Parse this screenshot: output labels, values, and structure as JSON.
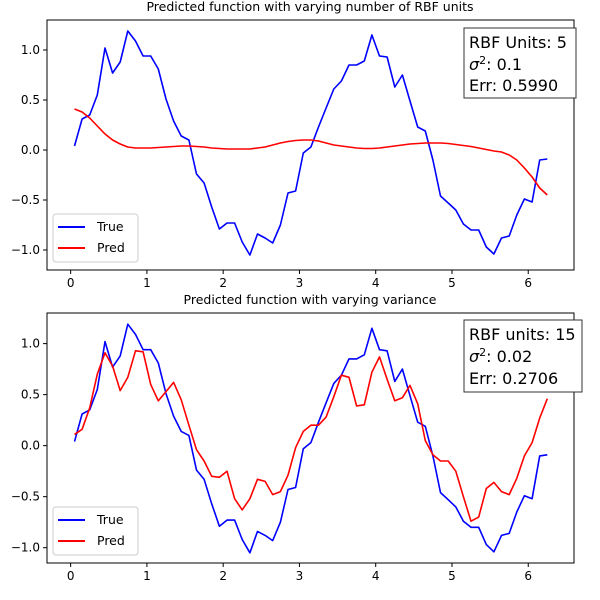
{
  "chart_data": [
    {
      "type": "line",
      "title": "Predicted function with varying number of RBF units",
      "xlim": [
        -0.31,
        6.6
      ],
      "ylim": [
        -1.2,
        1.3
      ],
      "xticks": [
        0,
        1,
        2,
        3,
        4,
        5,
        6
      ],
      "yticks": [
        -1.0,
        -0.5,
        0.0,
        0.5,
        1.0
      ],
      "ytick_labels": [
        "−1.0",
        "−0.5",
        "0.0",
        "0.5",
        "1.0"
      ],
      "grid": false,
      "legend_position": "lower-left",
      "info": {
        "line1": "RBF Units: 5",
        "line2_sup": "2",
        "line2_value": ": 0.1",
        "line3": "Err: 0.5990"
      },
      "series": [
        {
          "name": "True",
          "color": "#0000ff",
          "x": [
            0.05,
            0.15,
            0.25,
            0.35,
            0.45,
            0.55,
            0.65,
            0.75,
            0.85,
            0.95,
            1.05,
            1.15,
            1.25,
            1.35,
            1.45,
            1.55,
            1.65,
            1.75,
            1.85,
            1.95,
            2.05,
            2.15,
            2.25,
            2.35,
            2.45,
            2.55,
            2.65,
            2.75,
            2.85,
            2.95,
            3.05,
            3.15,
            3.25,
            3.35,
            3.45,
            3.55,
            3.65,
            3.75,
            3.85,
            3.95,
            4.05,
            4.15,
            4.25,
            4.35,
            4.45,
            4.55,
            4.65,
            4.75,
            4.85,
            4.95,
            5.05,
            5.15,
            5.25,
            5.35,
            5.45,
            5.55,
            5.65,
            5.75,
            5.85,
            5.95,
            6.05,
            6.15,
            6.25
          ],
          "y": [
            0.04,
            0.31,
            0.35,
            0.55,
            1.02,
            0.77,
            0.88,
            1.19,
            1.09,
            0.94,
            0.94,
            0.81,
            0.51,
            0.29,
            0.14,
            0.1,
            -0.24,
            -0.33,
            -0.57,
            -0.79,
            -0.73,
            -0.73,
            -0.92,
            -1.05,
            -0.84,
            -0.88,
            -0.93,
            -0.75,
            -0.43,
            -0.41,
            -0.03,
            0.03,
            0.23,
            0.42,
            0.61,
            0.69,
            0.85,
            0.85,
            0.89,
            1.15,
            0.94,
            0.93,
            0.63,
            0.75,
            0.49,
            0.23,
            0.19,
            -0.1,
            -0.46,
            -0.53,
            -0.6,
            -0.74,
            -0.8,
            -0.8,
            -0.97,
            -1.04,
            -0.88,
            -0.86,
            -0.65,
            -0.49,
            -0.52,
            -0.1,
            -0.09
          ]
        },
        {
          "name": "Pred",
          "color": "#ff0000",
          "x": [
            0.05,
            0.15,
            0.25,
            0.35,
            0.45,
            0.55,
            0.65,
            0.75,
            0.85,
            0.95,
            1.05,
            1.15,
            1.25,
            1.35,
            1.45,
            1.55,
            1.65,
            1.75,
            1.85,
            1.95,
            2.05,
            2.15,
            2.25,
            2.35,
            2.45,
            2.55,
            2.65,
            2.75,
            2.85,
            2.95,
            3.05,
            3.15,
            3.25,
            3.35,
            3.45,
            3.55,
            3.65,
            3.75,
            3.85,
            3.95,
            4.05,
            4.15,
            4.25,
            4.35,
            4.45,
            4.55,
            4.65,
            4.75,
            4.85,
            4.95,
            5.05,
            5.15,
            5.25,
            5.35,
            5.45,
            5.55,
            5.65,
            5.75,
            5.85,
            5.95,
            6.05,
            6.15,
            6.25
          ],
          "y": [
            0.41,
            0.38,
            0.32,
            0.24,
            0.16,
            0.1,
            0.06,
            0.03,
            0.02,
            0.02,
            0.02,
            0.025,
            0.03,
            0.035,
            0.04,
            0.04,
            0.035,
            0.03,
            0.02,
            0.015,
            0.01,
            0.01,
            0.01,
            0.01,
            0.02,
            0.03,
            0.05,
            0.07,
            0.085,
            0.095,
            0.1,
            0.1,
            0.09,
            0.07,
            0.05,
            0.04,
            0.03,
            0.02,
            0.015,
            0.015,
            0.02,
            0.03,
            0.04,
            0.05,
            0.06,
            0.065,
            0.07,
            0.07,
            0.07,
            0.065,
            0.055,
            0.045,
            0.035,
            0.02,
            0.005,
            -0.01,
            -0.02,
            -0.05,
            -0.1,
            -0.18,
            -0.27,
            -0.38,
            -0.45
          ]
        }
      ]
    },
    {
      "type": "line",
      "title": "Predicted function with varying variance",
      "xlim": [
        -0.31,
        6.6
      ],
      "ylim": [
        -1.15,
        1.3
      ],
      "xticks": [
        0,
        1,
        2,
        3,
        4,
        5,
        6
      ],
      "yticks": [
        -1.0,
        -0.5,
        0.0,
        0.5,
        1.0
      ],
      "ytick_labels": [
        "−1.0",
        "−0.5",
        "0.0",
        "0.5",
        "1.0"
      ],
      "grid": false,
      "legend_position": "lower-left",
      "info": {
        "line1": "RBF units: 15",
        "line2_sup": "2",
        "line2_value": ": 0.02",
        "line3": "Err: 0.2706"
      },
      "series": [
        {
          "name": "True",
          "color": "#0000ff",
          "x": [
            0.05,
            0.15,
            0.25,
            0.35,
            0.45,
            0.55,
            0.65,
            0.75,
            0.85,
            0.95,
            1.05,
            1.15,
            1.25,
            1.35,
            1.45,
            1.55,
            1.65,
            1.75,
            1.85,
            1.95,
            2.05,
            2.15,
            2.25,
            2.35,
            2.45,
            2.55,
            2.65,
            2.75,
            2.85,
            2.95,
            3.05,
            3.15,
            3.25,
            3.35,
            3.45,
            3.55,
            3.65,
            3.75,
            3.85,
            3.95,
            4.05,
            4.15,
            4.25,
            4.35,
            4.45,
            4.55,
            4.65,
            4.75,
            4.85,
            4.95,
            5.05,
            5.15,
            5.25,
            5.35,
            5.45,
            5.55,
            5.65,
            5.75,
            5.85,
            5.95,
            6.05,
            6.15,
            6.25
          ],
          "y": [
            0.04,
            0.31,
            0.35,
            0.55,
            1.02,
            0.77,
            0.88,
            1.19,
            1.09,
            0.94,
            0.94,
            0.81,
            0.51,
            0.29,
            0.14,
            0.1,
            -0.24,
            -0.33,
            -0.57,
            -0.79,
            -0.73,
            -0.73,
            -0.92,
            -1.05,
            -0.84,
            -0.88,
            -0.93,
            -0.75,
            -0.43,
            -0.41,
            -0.03,
            0.03,
            0.23,
            0.42,
            0.61,
            0.69,
            0.85,
            0.85,
            0.89,
            1.15,
            0.94,
            0.93,
            0.63,
            0.75,
            0.49,
            0.23,
            0.19,
            -0.1,
            -0.46,
            -0.53,
            -0.6,
            -0.74,
            -0.8,
            -0.8,
            -0.97,
            -1.04,
            -0.88,
            -0.86,
            -0.65,
            -0.49,
            -0.52,
            -0.1,
            -0.09
          ]
        },
        {
          "name": "Pred",
          "color": "#ff0000",
          "x": [
            0.05,
            0.15,
            0.25,
            0.35,
            0.45,
            0.55,
            0.65,
            0.75,
            0.85,
            0.95,
            1.05,
            1.15,
            1.25,
            1.35,
            1.45,
            1.55,
            1.65,
            1.75,
            1.85,
            1.95,
            2.05,
            2.15,
            2.25,
            2.35,
            2.45,
            2.55,
            2.65,
            2.75,
            2.85,
            2.95,
            3.05,
            3.15,
            3.25,
            3.35,
            3.45,
            3.55,
            3.65,
            3.75,
            3.85,
            3.95,
            4.05,
            4.15,
            4.25,
            4.35,
            4.45,
            4.55,
            4.65,
            4.75,
            4.85,
            4.95,
            5.05,
            5.15,
            5.25,
            5.35,
            5.45,
            5.55,
            5.65,
            5.75,
            5.85,
            5.95,
            6.05,
            6.15,
            6.25
          ],
          "y": [
            0.11,
            0.16,
            0.37,
            0.7,
            0.91,
            0.78,
            0.54,
            0.67,
            0.93,
            0.92,
            0.6,
            0.44,
            0.53,
            0.62,
            0.45,
            0.2,
            -0.04,
            -0.15,
            -0.3,
            -0.31,
            -0.25,
            -0.52,
            -0.63,
            -0.52,
            -0.33,
            -0.35,
            -0.48,
            -0.45,
            -0.29,
            -0.02,
            0.14,
            0.2,
            0.2,
            0.28,
            0.48,
            0.69,
            0.67,
            0.39,
            0.4,
            0.72,
            0.87,
            0.65,
            0.44,
            0.47,
            0.59,
            0.41,
            0.05,
            -0.09,
            -0.15,
            -0.15,
            -0.25,
            -0.5,
            -0.74,
            -0.7,
            -0.42,
            -0.36,
            -0.45,
            -0.48,
            -0.32,
            -0.1,
            0.03,
            0.27,
            0.46
          ]
        }
      ]
    }
  ]
}
